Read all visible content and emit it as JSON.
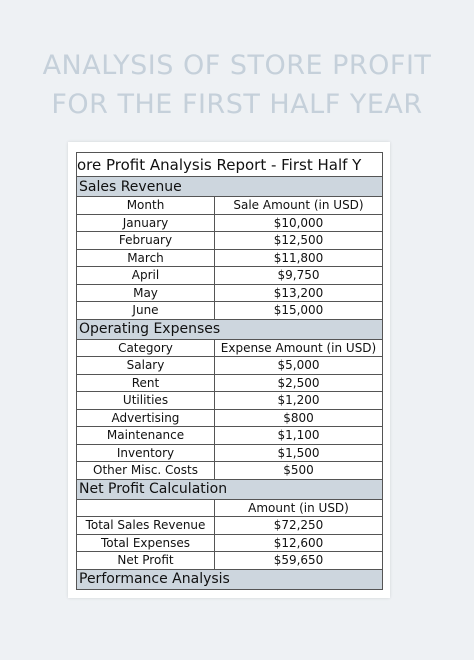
{
  "header": {
    "title_lines": [
      "ANALYSIS OF STORE PROFIT",
      "FOR THE FIRST HALF YEAR"
    ]
  },
  "report": {
    "title": "ore Profit Analysis Report - First Half Y",
    "sections": [
      {
        "title": "Sales Revenue",
        "columns": [
          "Month",
          "Sale Amount (in USD)"
        ],
        "rows": [
          [
            "January",
            "$10,000"
          ],
          [
            "February",
            "$12,500"
          ],
          [
            "March",
            "$11,800"
          ],
          [
            "April",
            "$9,750"
          ],
          [
            "May",
            "$13,200"
          ],
          [
            "June",
            "$15,000"
          ]
        ]
      },
      {
        "title": "Operating Expenses",
        "columns": [
          "Category",
          "Expense Amount (in USD)"
        ],
        "rows": [
          [
            "Salary",
            "$5,000"
          ],
          [
            "Rent",
            "$2,500"
          ],
          [
            "Utilities",
            "$1,200"
          ],
          [
            "Advertising",
            "$800"
          ],
          [
            "Maintenance",
            "$1,100"
          ],
          [
            "Inventory",
            "$1,500"
          ],
          [
            "Other Misc. Costs",
            "$500"
          ]
        ]
      },
      {
        "title": "Net Profit Calculation",
        "columns": [
          null,
          "Amount (in USD)"
        ],
        "rows": [
          [
            "Total Sales Revenue",
            "$72,250"
          ],
          [
            "Total Expenses",
            "$12,600"
          ],
          [
            "Net Profit",
            "$59,650"
          ]
        ]
      },
      {
        "title": "Performance Analysis"
      }
    ]
  }
}
